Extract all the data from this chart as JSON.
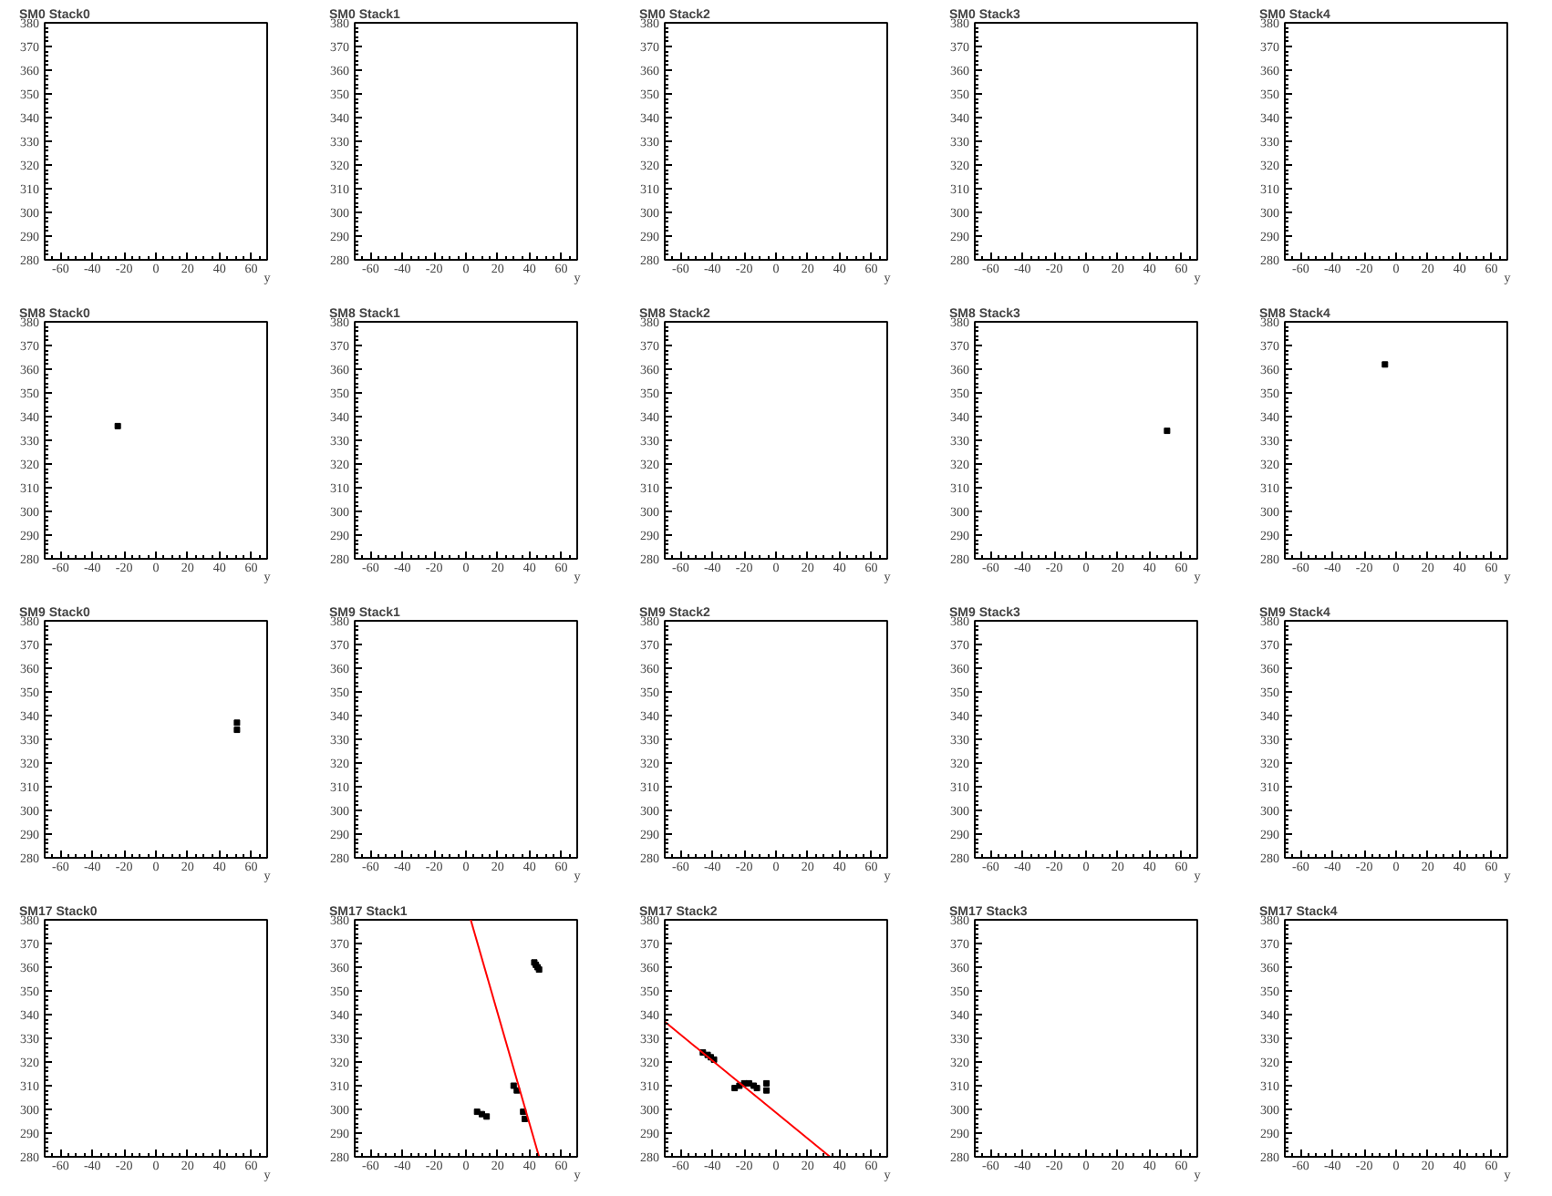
{
  "chart_data": [
    {
      "type": "scatter",
      "title": "SM0 Stack0",
      "xlabel": "y",
      "xlim": [
        -70,
        70
      ],
      "ylim": [
        280,
        380
      ],
      "xticks": [
        -60,
        -40,
        -20,
        0,
        20,
        40,
        60
      ],
      "yticks": [
        280,
        290,
        300,
        310,
        320,
        330,
        340,
        350,
        360,
        370,
        380
      ]
    },
    {
      "type": "scatter",
      "title": "SM0 Stack1",
      "xlabel": "y",
      "xlim": [
        -70,
        70
      ],
      "ylim": [
        280,
        380
      ],
      "xticks": [
        -60,
        -40,
        -20,
        0,
        20,
        40,
        60
      ],
      "yticks": [
        280,
        290,
        300,
        310,
        320,
        330,
        340,
        350,
        360,
        370,
        380
      ]
    },
    {
      "type": "scatter",
      "title": "SM0 Stack2",
      "xlabel": "y",
      "xlim": [
        -70,
        70
      ],
      "ylim": [
        280,
        380
      ],
      "xticks": [
        -60,
        -40,
        -20,
        0,
        20,
        40,
        60
      ],
      "yticks": [
        280,
        290,
        300,
        310,
        320,
        330,
        340,
        350,
        360,
        370,
        380
      ]
    },
    {
      "type": "scatter",
      "title": "SM0 Stack3",
      "xlabel": "y",
      "xlim": [
        -70,
        70
      ],
      "ylim": [
        280,
        380
      ],
      "xticks": [
        -60,
        -40,
        -20,
        0,
        20,
        40,
        60
      ],
      "yticks": [
        280,
        290,
        300,
        310,
        320,
        330,
        340,
        350,
        360,
        370,
        380
      ]
    },
    {
      "type": "scatter",
      "title": "SM0 Stack4",
      "xlabel": "y",
      "xlim": [
        -70,
        70
      ],
      "ylim": [
        280,
        380
      ],
      "xticks": [
        -60,
        -40,
        -20,
        0,
        20,
        40,
        60
      ],
      "yticks": [
        280,
        290,
        300,
        310,
        320,
        330,
        340,
        350,
        360,
        370,
        380
      ]
    },
    {
      "type": "scatter",
      "title": "SM8 Stack0",
      "xlabel": "y",
      "xlim": [
        -70,
        70
      ],
      "ylim": [
        280,
        380
      ],
      "xticks": [
        -60,
        -40,
        -20,
        0,
        20,
        40,
        60
      ],
      "yticks": [
        280,
        290,
        300,
        310,
        320,
        330,
        340,
        350,
        360,
        370,
        380
      ],
      "marker": "square",
      "series": [
        {
          "color": "#000000",
          "x": [
            -24
          ],
          "values": [
            336
          ]
        }
      ]
    },
    {
      "type": "scatter",
      "title": "SM8 Stack1",
      "xlabel": "y",
      "xlim": [
        -70,
        70
      ],
      "ylim": [
        280,
        380
      ],
      "xticks": [
        -60,
        -40,
        -20,
        0,
        20,
        40,
        60
      ],
      "yticks": [
        280,
        290,
        300,
        310,
        320,
        330,
        340,
        350,
        360,
        370,
        380
      ]
    },
    {
      "type": "scatter",
      "title": "SM8 Stack2",
      "xlabel": "y",
      "xlim": [
        -70,
        70
      ],
      "ylim": [
        280,
        380
      ],
      "xticks": [
        -60,
        -40,
        -20,
        0,
        20,
        40,
        60
      ],
      "yticks": [
        280,
        290,
        300,
        310,
        320,
        330,
        340,
        350,
        360,
        370,
        380
      ]
    },
    {
      "type": "scatter",
      "title": "SM8 Stack3",
      "xlabel": "y",
      "xlim": [
        -70,
        70
      ],
      "ylim": [
        280,
        380
      ],
      "xticks": [
        -60,
        -40,
        -20,
        0,
        20,
        40,
        60
      ],
      "yticks": [
        280,
        290,
        300,
        310,
        320,
        330,
        340,
        350,
        360,
        370,
        380
      ],
      "marker": "square",
      "series": [
        {
          "color": "#000000",
          "x": [
            51
          ],
          "values": [
            334
          ]
        }
      ]
    },
    {
      "type": "scatter",
      "title": "SM8 Stack4",
      "xlabel": "y",
      "xlim": [
        -70,
        70
      ],
      "ylim": [
        280,
        380
      ],
      "xticks": [
        -60,
        -40,
        -20,
        0,
        20,
        40,
        60
      ],
      "yticks": [
        280,
        290,
        300,
        310,
        320,
        330,
        340,
        350,
        360,
        370,
        380
      ],
      "marker": "square",
      "series": [
        {
          "color": "#000000",
          "x": [
            -7
          ],
          "values": [
            362
          ]
        }
      ]
    },
    {
      "type": "scatter",
      "title": "SM9 Stack0",
      "xlabel": "y",
      "xlim": [
        -70,
        70
      ],
      "ylim": [
        280,
        380
      ],
      "xticks": [
        -60,
        -40,
        -20,
        0,
        20,
        40,
        60
      ],
      "yticks": [
        280,
        290,
        300,
        310,
        320,
        330,
        340,
        350,
        360,
        370,
        380
      ],
      "marker": "square",
      "series": [
        {
          "color": "#000000",
          "x": [
            51,
            51
          ],
          "values": [
            337,
            334
          ]
        }
      ]
    },
    {
      "type": "scatter",
      "title": "SM9 Stack1",
      "xlabel": "y",
      "xlim": [
        -70,
        70
      ],
      "ylim": [
        280,
        380
      ],
      "xticks": [
        -60,
        -40,
        -20,
        0,
        20,
        40,
        60
      ],
      "yticks": [
        280,
        290,
        300,
        310,
        320,
        330,
        340,
        350,
        360,
        370,
        380
      ]
    },
    {
      "type": "scatter",
      "title": "SM9 Stack2",
      "xlabel": "y",
      "xlim": [
        -70,
        70
      ],
      "ylim": [
        280,
        380
      ],
      "xticks": [
        -60,
        -40,
        -20,
        0,
        20,
        40,
        60
      ],
      "yticks": [
        280,
        290,
        300,
        310,
        320,
        330,
        340,
        350,
        360,
        370,
        380
      ]
    },
    {
      "type": "scatter",
      "title": "SM9 Stack3",
      "xlabel": "y",
      "xlim": [
        -70,
        70
      ],
      "ylim": [
        280,
        380
      ],
      "xticks": [
        -60,
        -40,
        -20,
        0,
        20,
        40,
        60
      ],
      "yticks": [
        280,
        290,
        300,
        310,
        320,
        330,
        340,
        350,
        360,
        370,
        380
      ]
    },
    {
      "type": "scatter",
      "title": "SM9 Stack4",
      "xlabel": "y",
      "xlim": [
        -70,
        70
      ],
      "ylim": [
        280,
        380
      ],
      "xticks": [
        -60,
        -40,
        -20,
        0,
        20,
        40,
        60
      ],
      "yticks": [
        280,
        290,
        300,
        310,
        320,
        330,
        340,
        350,
        360,
        370,
        380
      ]
    },
    {
      "type": "scatter",
      "title": "SM17 Stack0",
      "xlabel": "y",
      "xlim": [
        -70,
        70
      ],
      "ylim": [
        280,
        380
      ],
      "xticks": [
        -60,
        -40,
        -20,
        0,
        20,
        40,
        60
      ],
      "yticks": [
        280,
        290,
        300,
        310,
        320,
        330,
        340,
        350,
        360,
        370,
        380
      ]
    },
    {
      "type": "scatter",
      "title": "SM17 Stack1",
      "xlabel": "y",
      "xlim": [
        -70,
        70
      ],
      "ylim": [
        280,
        380
      ],
      "xticks": [
        -60,
        -40,
        -20,
        0,
        20,
        40,
        60
      ],
      "yticks": [
        280,
        290,
        300,
        310,
        320,
        330,
        340,
        350,
        360,
        370,
        380
      ],
      "marker": "square",
      "series": [
        {
          "color": "#000000",
          "x": [
            43,
            44,
            45,
            46,
            30,
            32,
            36,
            37,
            7,
            10,
            13
          ],
          "values": [
            362,
            361,
            360,
            359,
            310,
            308,
            299,
            296,
            299,
            298,
            297
          ]
        },
        {
          "type": "line",
          "marker": "none",
          "color": "#ff0000",
          "x": [
            3,
            46
          ],
          "values": [
            380,
            280
          ]
        }
      ]
    },
    {
      "type": "scatter",
      "title": "SM17 Stack2",
      "xlabel": "y",
      "xlim": [
        -70,
        70
      ],
      "ylim": [
        280,
        380
      ],
      "xticks": [
        -60,
        -40,
        -20,
        0,
        20,
        40,
        60
      ],
      "yticks": [
        280,
        290,
        300,
        310,
        320,
        330,
        340,
        350,
        360,
        370,
        380
      ],
      "marker": "square",
      "series": [
        {
          "color": "#000000",
          "x": [
            -46,
            -43,
            -41,
            -39,
            -26,
            -23,
            -20,
            -17,
            -14,
            -12,
            -6,
            -6
          ],
          "values": [
            324,
            323,
            322,
            321,
            309,
            310,
            311,
            311,
            310,
            309,
            311,
            308
          ]
        },
        {
          "type": "line",
          "marker": "none",
          "color": "#ff0000",
          "x": [
            -70,
            34
          ],
          "values": [
            337,
            280
          ]
        }
      ]
    },
    {
      "type": "scatter",
      "title": "SM17 Stack3",
      "xlabel": "y",
      "xlim": [
        -70,
        70
      ],
      "ylim": [
        280,
        380
      ],
      "xticks": [
        -60,
        -40,
        -20,
        0,
        20,
        40,
        60
      ],
      "yticks": [
        280,
        290,
        300,
        310,
        320,
        330,
        340,
        350,
        360,
        370,
        380
      ]
    },
    {
      "type": "scatter",
      "title": "SM17 Stack4",
      "xlabel": "y",
      "xlim": [
        -70,
        70
      ],
      "ylim": [
        280,
        380
      ],
      "xticks": [
        -60,
        -40,
        -20,
        0,
        20,
        40,
        60
      ],
      "yticks": [
        280,
        290,
        300,
        310,
        320,
        330,
        340,
        350,
        360,
        370,
        380
      ]
    }
  ]
}
